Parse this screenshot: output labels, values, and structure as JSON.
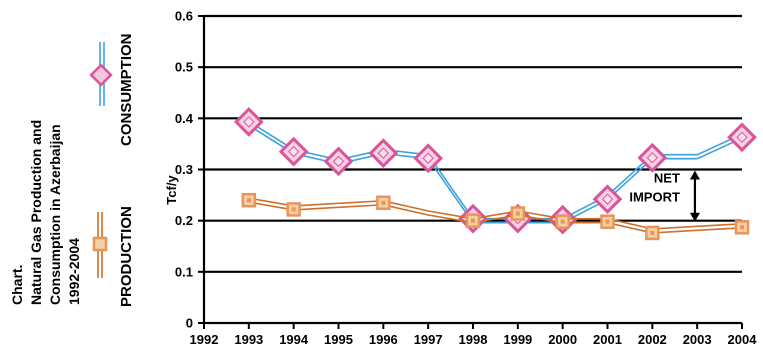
{
  "chart_data": {
    "type": "line",
    "title_lines": [
      "Chart.",
      "Natural Gas Production and",
      "Consumption in Azerbaijan",
      "1992-2004"
    ],
    "ylabel": "Tcf/y",
    "xlabel": "",
    "x": [
      1992,
      1993,
      1994,
      1995,
      1996,
      1997,
      1998,
      1999,
      2000,
      2001,
      2002,
      2003,
      2004
    ],
    "xlim": [
      1992,
      2004
    ],
    "ylim": [
      0,
      0.6
    ],
    "yticks": [
      0,
      0.1,
      0.2,
      0.3,
      0.4,
      0.5,
      0.6
    ],
    "ytick_labels": [
      "0",
      "0.1",
      "0.2",
      "0.3",
      "0.4",
      "0.5",
      "0.6"
    ],
    "grid": "horizontal",
    "series": [
      {
        "name": "CONSUMPTION",
        "color": "#3aa3dc",
        "marker_color": "#d9559a",
        "line_points": [
          [
            1993,
            0.39
          ],
          [
            1994,
            0.335
          ],
          [
            1995,
            0.315
          ],
          [
            1996,
            0.335
          ],
          [
            1997,
            0.325
          ],
          [
            1998,
            0.2
          ],
          [
            1999,
            0.2
          ],
          [
            2000,
            0.2
          ],
          [
            2001,
            0.245
          ],
          [
            2002,
            0.325
          ],
          [
            2003,
            0.325
          ],
          [
            2004,
            0.365
          ]
        ],
        "markers": [
          [
            1993,
            0.393
          ],
          [
            1994,
            0.335
          ],
          [
            1995,
            0.316
          ],
          [
            1996,
            0.332
          ],
          [
            1997,
            0.322
          ],
          [
            1998,
            0.204
          ],
          [
            1999,
            0.204
          ],
          [
            2000,
            0.202
          ],
          [
            2001,
            0.242
          ],
          [
            2002,
            0.323
          ],
          [
            2004,
            0.363
          ]
        ]
      },
      {
        "name": "PRODUCTION",
        "color": "#cf6f28",
        "marker_color": "#e8955a",
        "line_points": [
          [
            1993,
            0.24
          ],
          [
            1994,
            0.225
          ],
          [
            1995,
            0.23
          ],
          [
            1996,
            0.235
          ],
          [
            1997,
            0.215
          ],
          [
            1998,
            0.2
          ],
          [
            1999,
            0.215
          ],
          [
            2000,
            0.2
          ],
          [
            2001,
            0.2
          ],
          [
            2002,
            0.18
          ],
          [
            2003,
            0.185
          ],
          [
            2004,
            0.19
          ]
        ],
        "markers": [
          [
            1993,
            0.24
          ],
          [
            1994,
            0.222
          ],
          [
            1996,
            0.235
          ],
          [
            1998,
            0.2
          ],
          [
            1999,
            0.214
          ],
          [
            2000,
            0.198
          ],
          [
            2001,
            0.198
          ],
          [
            2002,
            0.176
          ],
          [
            2004,
            0.187
          ]
        ]
      }
    ],
    "annotation": {
      "lines": [
        "NET",
        "IMPORT"
      ],
      "x": 2002.95,
      "y_from": 0.198,
      "y_to": 0.298
    }
  }
}
